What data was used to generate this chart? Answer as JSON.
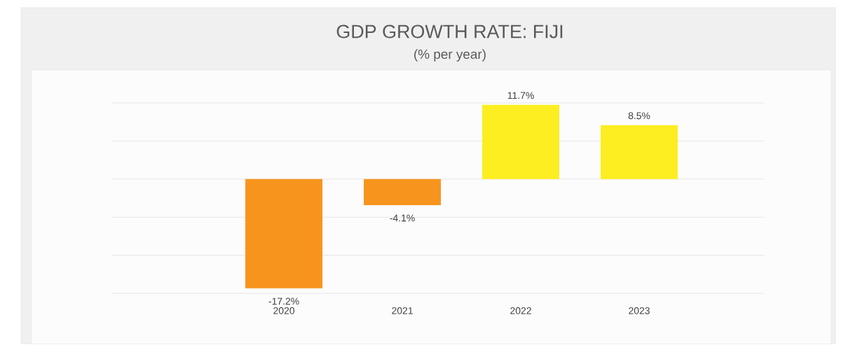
{
  "chart_data": {
    "type": "bar",
    "title": "GDP GROWTH RATE: FIJI",
    "subtitle": "(% per year)",
    "categories": [
      "2020",
      "2021",
      "2022",
      "2023"
    ],
    "values": [
      -17.2,
      -4.1,
      11.7,
      8.5
    ],
    "colors": [
      "#f7941d",
      "#f7941d",
      "#fdee21",
      "#fdee21"
    ],
    "value_labels": [
      "-17.2%",
      "-4.1%",
      "11.7%",
      "8.5%"
    ],
    "ylim": [
      -18,
      12
    ],
    "yticks": [
      {
        "value": -18,
        "label": null
      },
      {
        "value": -12,
        "label": null
      },
      {
        "value": -6,
        "label": null
      },
      {
        "value": 0,
        "label": null
      },
      {
        "value": 6,
        "label": null
      },
      {
        "value": 12,
        "label": null
      }
    ],
    "grid": "y"
  }
}
